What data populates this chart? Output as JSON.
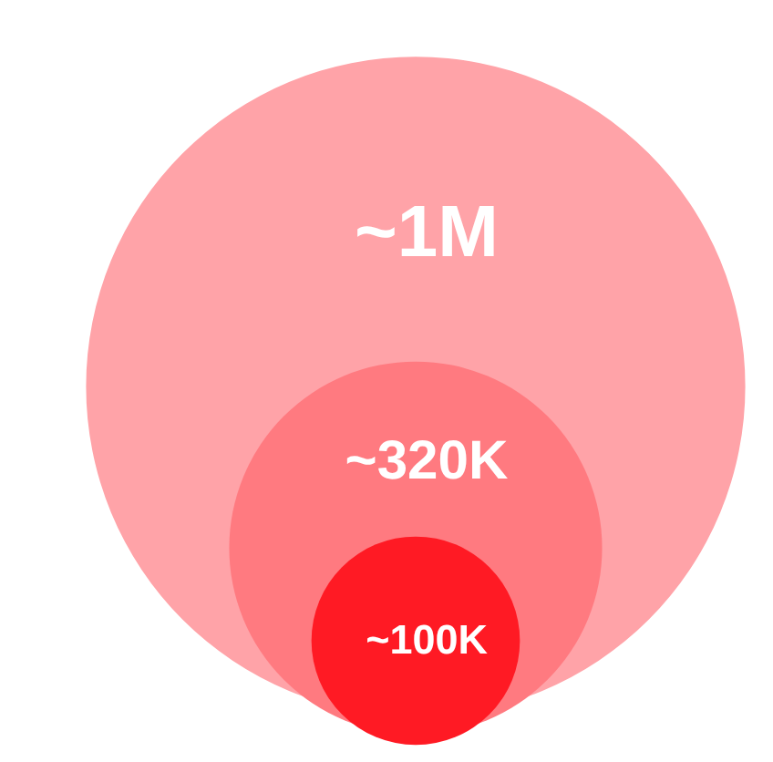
{
  "chart_data": {
    "type": "other",
    "values": [
      1000000,
      320000,
      100000
    ],
    "value_labels": [
      "~1M",
      "~320K",
      "~100K"
    ],
    "colors": [
      "#ffa3a8",
      "#ff7a80",
      "#ff1a24"
    ]
  }
}
